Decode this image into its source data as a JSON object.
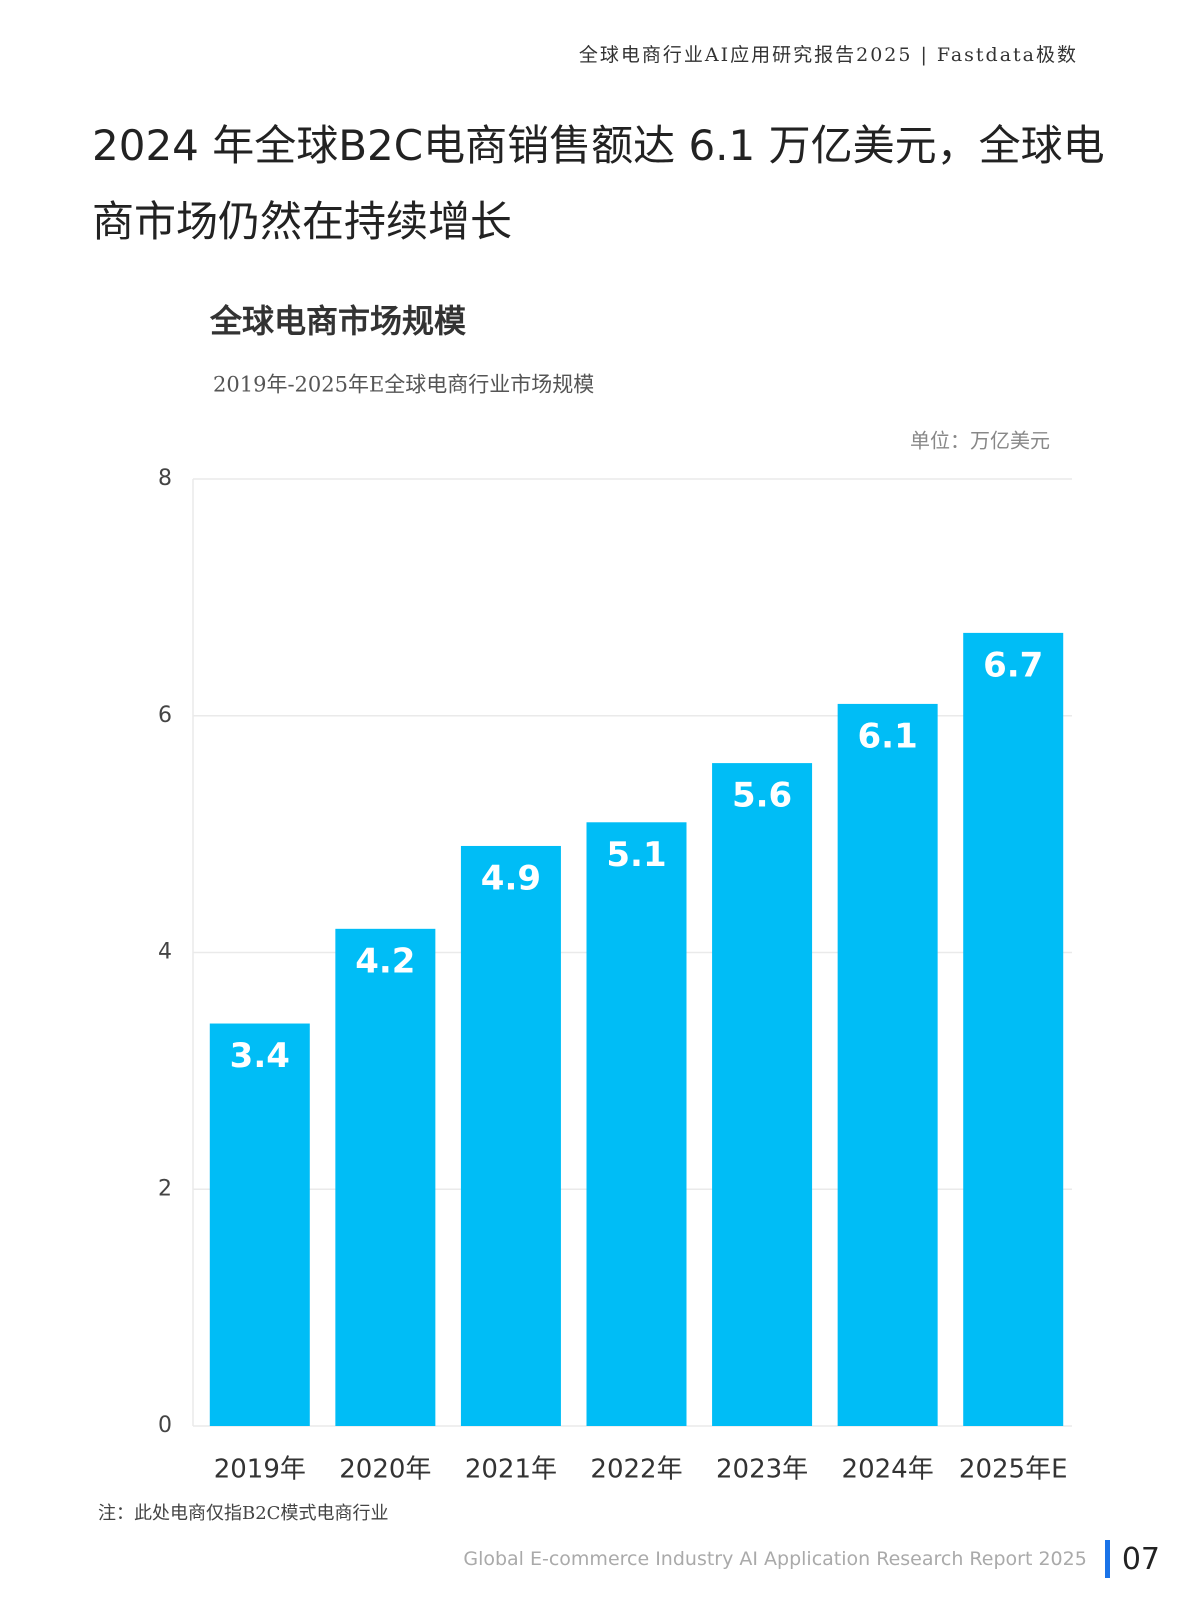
{
  "header": "全球电商行业AI应用研究报告2025 | Fastdata极数",
  "headline": "2024 年全球B2C电商销售额达 6.1 万亿美元，全球电商市场仍然在持续增长",
  "chart_data": {
    "type": "bar",
    "title": "全球电商市场规模",
    "subtitle": "2019年-2025年E全球电商行业市场规模",
    "unit": "单位：万亿美元",
    "categories": [
      "2019年",
      "2020年",
      "2021年",
      "2022年",
      "2023年",
      "2024年",
      "2025年E"
    ],
    "values": [
      3.4,
      4.2,
      4.9,
      5.1,
      5.6,
      6.1,
      6.7
    ],
    "color": "#00bdf6",
    "ylim": [
      0,
      8
    ],
    "yticks": [
      0,
      2,
      4,
      6,
      8
    ],
    "grid": true
  },
  "note": "注：此处电商仅指B2C模式电商行业",
  "footer": {
    "text": "Global E-commerce Industry AI Application Research Report 2025",
    "page": "07"
  }
}
